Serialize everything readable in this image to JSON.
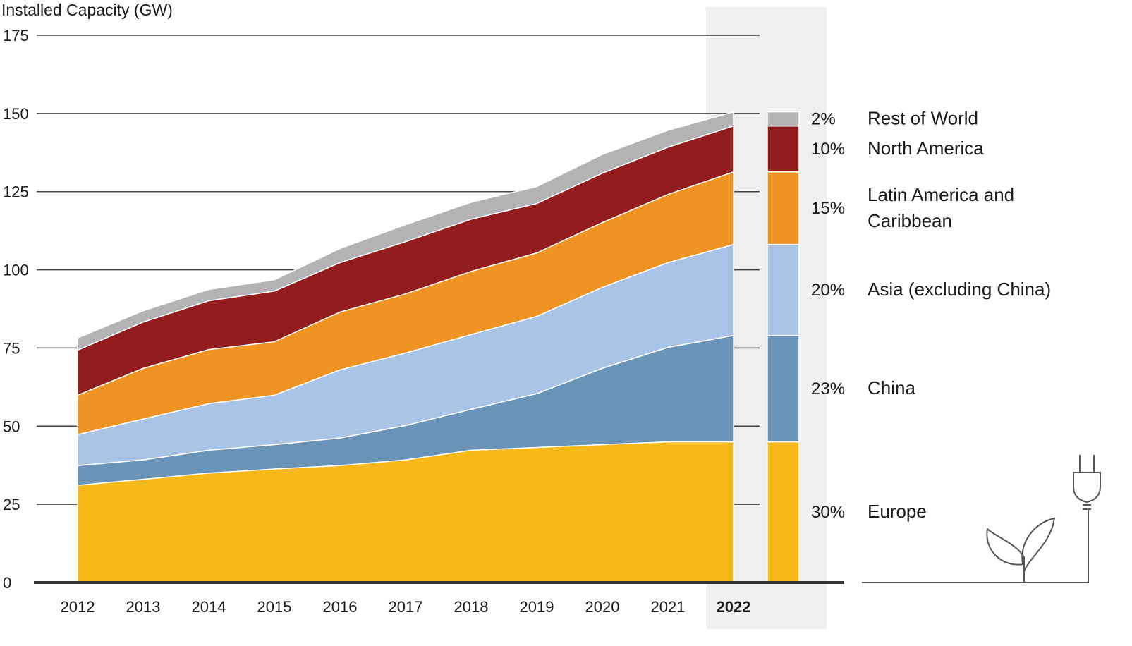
{
  "chart_data": {
    "type": "area",
    "stacked": true,
    "ylabel": "Installed Capacity (GW)",
    "ylim": [
      0,
      175
    ],
    "yticks": [
      0,
      25,
      50,
      75,
      100,
      125,
      150,
      175
    ],
    "x": [
      "2012",
      "2013",
      "2014",
      "2015",
      "2016",
      "2017",
      "2018",
      "2019",
      "2020",
      "2021",
      "2022"
    ],
    "highlight_year": "2022",
    "series": [
      {
        "name": "Europe",
        "share": "30%",
        "color": "#f6b918",
        "values": [
          31.1,
          33,
          35,
          36.3,
          37.4,
          39.2,
          42.3,
          43.2,
          44.1,
          45,
          45
        ]
      },
      {
        "name": "China",
        "share": "23%",
        "color": "#6a93b8",
        "values": [
          6.3,
          6.2,
          7.3,
          7.8,
          8.8,
          11,
          13.1,
          17.2,
          24.4,
          30.2,
          34
        ]
      },
      {
        "name": "Asia (excluding China)",
        "share": "20%",
        "color": "#a9c4e6",
        "values": [
          9.9,
          13.1,
          14.9,
          15.8,
          21.8,
          23.2,
          23.9,
          24.7,
          25.9,
          27.1,
          29.1
        ]
      },
      {
        "name": "Latin America and Caribbean",
        "name_lines": [
          "Latin America and",
          "Caribbean"
        ],
        "share": "15%",
        "color": "#ef9322",
        "values": [
          12.6,
          16.2,
          17.3,
          17.1,
          18.5,
          18.9,
          20.2,
          20.3,
          20.7,
          21.8,
          23.2
        ]
      },
      {
        "name": "North America",
        "share": "10%",
        "color": "#931c1e",
        "values": [
          14.4,
          14.8,
          15.6,
          16.2,
          15.8,
          16.7,
          16.7,
          15.8,
          15.8,
          15.1,
          14.7
        ]
      },
      {
        "name": "Rest of World",
        "share": "2%",
        "color": "#b3b3b5",
        "values": [
          3.9,
          3.6,
          3.6,
          3.6,
          4.5,
          5.4,
          5.4,
          5.4,
          6,
          5.4,
          4.5
        ]
      }
    ],
    "legend": "right"
  }
}
